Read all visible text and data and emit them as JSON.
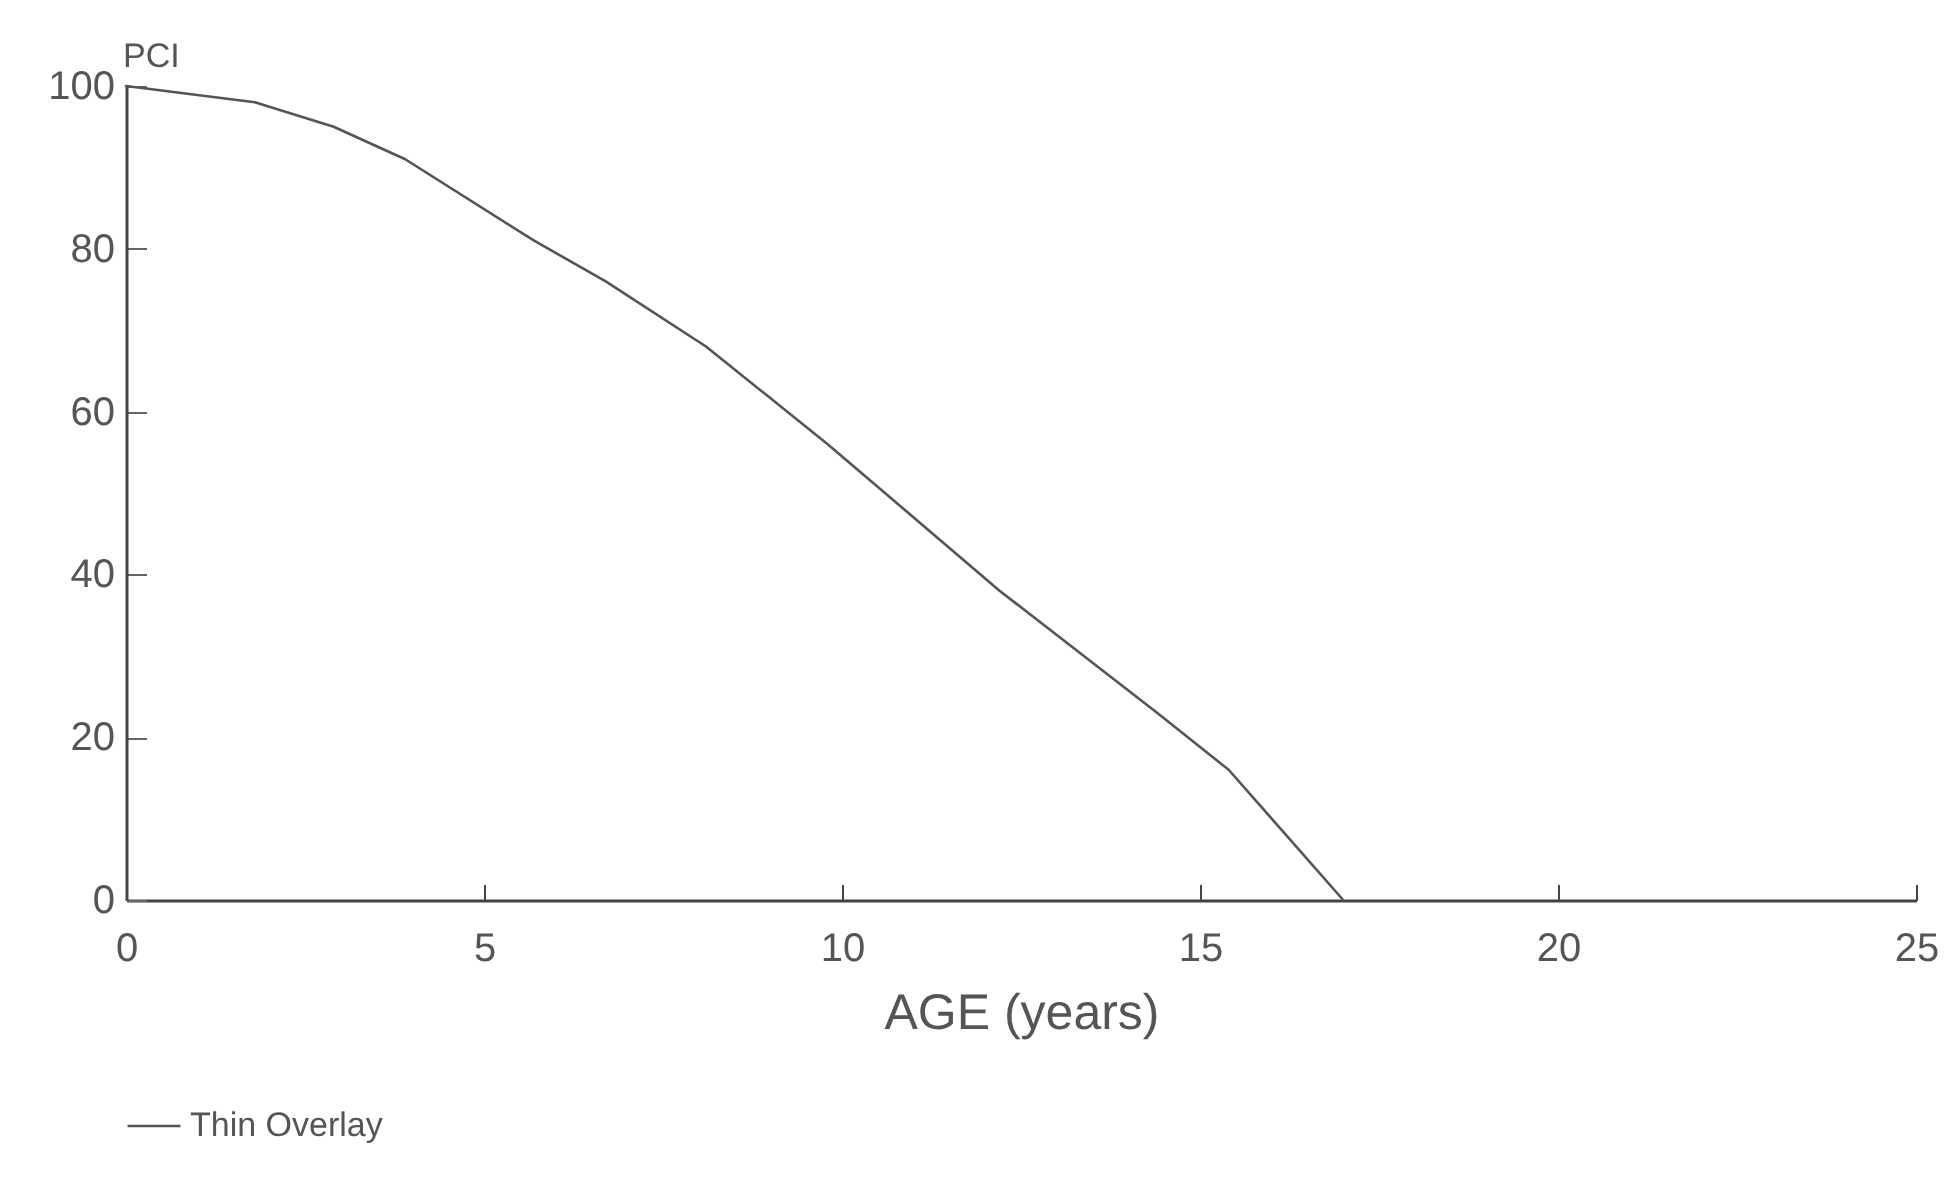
{
  "chart_data": {
    "type": "line",
    "xlabel": "AGE (years)",
    "ylabel": "PCI",
    "x": [
      0,
      1.8,
      2.9,
      3.9,
      5.7,
      6.7,
      8.1,
      9.8,
      12.2,
      14.4,
      15.4,
      17
    ],
    "series": [
      {
        "name": "Thin Overlay",
        "color": "#555555",
        "values": [
          100,
          98,
          95,
          91,
          81,
          76,
          68,
          56,
          38,
          23,
          16,
          0
        ]
      }
    ],
    "xlim": [
      0,
      25
    ],
    "xticks": [
      0,
      5,
      10,
      15,
      20,
      25
    ],
    "ylim": [
      0,
      100
    ],
    "yticks": [
      0,
      20,
      40,
      60,
      80,
      100
    ],
    "grid": false,
    "legend": "bottom",
    "marker": "none",
    "line_style": "solid"
  }
}
